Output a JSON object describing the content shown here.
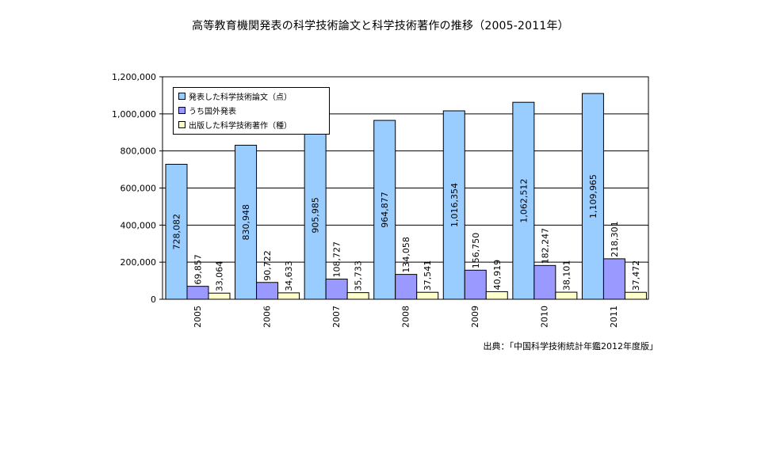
{
  "title": "高等教育機関発表の科学技術論文と科学技術著作の推移（2005-2011年）",
  "source": "出典：「中国科学技術統計年鑑2012年度版」",
  "colors": {
    "series1": "#99ccff",
    "series2": "#9999ff",
    "series3": "#ffffcc",
    "grid": "#000000"
  },
  "chart_data": {
    "type": "bar",
    "categories": [
      "2005",
      "2006",
      "2007",
      "2008",
      "2009",
      "2010",
      "2011"
    ],
    "series": [
      {
        "name": "発表した科学技術論文（点）",
        "values": [
          728082,
          830948,
          905985,
          964877,
          1016354,
          1062512,
          1109965
        ],
        "labels": [
          "728,082",
          "830,948",
          "905,985",
          "964,877",
          "1,016,354",
          "1,062,512",
          "1,109,965"
        ]
      },
      {
        "name": "うち国外発表",
        "values": [
          69857,
          90722,
          108727,
          134058,
          156750,
          182247,
          218301
        ],
        "labels": [
          "69,857",
          "90,722",
          "108,727",
          "134,058",
          "156,750",
          "182,247",
          "218,301"
        ]
      },
      {
        "name": "出版した科学技術著作（種）",
        "values": [
          33064,
          34633,
          35733,
          37541,
          40919,
          38101,
          37472
        ],
        "labels": [
          "33,064",
          "34,633",
          "35,733",
          "37,541",
          "40,919",
          "38,101",
          "37,472"
        ]
      }
    ],
    "yticks": [
      "0",
      "200,000",
      "400,000",
      "600,000",
      "800,000",
      "1,000,000",
      "1,200,000"
    ],
    "ylim": [
      0,
      1200000
    ],
    "grid": true,
    "legend_position": "top-left"
  }
}
